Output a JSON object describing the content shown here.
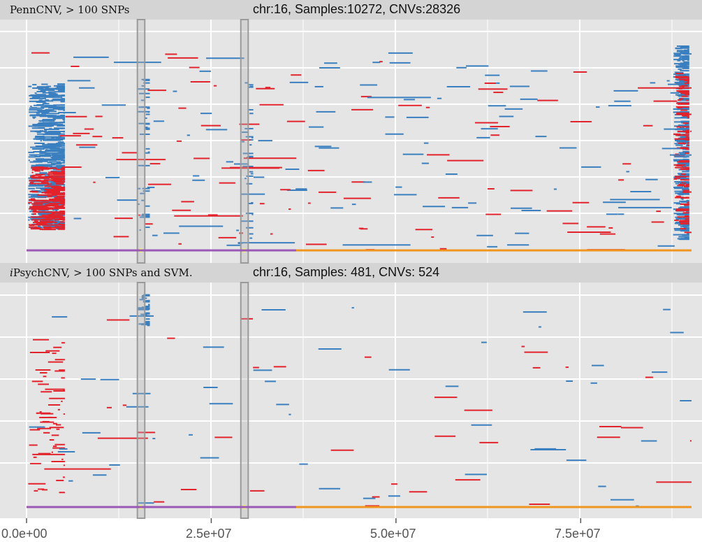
{
  "colors": {
    "panel_bg": "#e5e5e5",
    "header_bg": "#d4d4d4",
    "grid": "#ffffff",
    "duplication": "#e3232b",
    "deletion": "#3a7fbf",
    "segment_a": "#9b59b6",
    "segment_b": "#f0961e",
    "highlight_band": "#b5b5b5",
    "marker": "#f5f07a"
  },
  "panels": [
    {
      "label": "PennCNV, > 100 SNPs",
      "title": "chr:16, Samples:10272, CNVs:28326"
    },
    {
      "label_prefix": "i",
      "label_rest": "PsychCNV, > 100 SNPs and SVM.",
      "title": "chr:16, Samples: 481, CNVs: 524"
    }
  ],
  "chart_data": {
    "type": "scatter",
    "x_tick_labels": [
      "0.0e+00",
      "2.5e+07",
      "5.0e+07",
      "7.5e+07"
    ],
    "x_ticks": [
      0,
      25000000,
      50000000,
      75000000
    ],
    "xlim": [
      0,
      90000000
    ],
    "highlight_regions": [
      [
        15000000,
        16000000
      ],
      [
        29000000,
        30000000
      ]
    ],
    "axis_segments": [
      {
        "from": 0,
        "to": 36500000,
        "color_key": "segment_a"
      },
      {
        "from": 36500000,
        "to": 90000000,
        "color_key": "segment_b"
      }
    ],
    "clusters_panel1": [
      {
        "x": [
          200000,
          5000000
        ],
        "y": [
          0.1,
          0.8
        ],
        "type": "deletion",
        "density": 500
      },
      {
        "x": [
          200000,
          5000000
        ],
        "y": [
          0.1,
          0.4
        ],
        "type": "duplication",
        "density": 200
      },
      {
        "x": [
          15000000,
          16500000
        ],
        "y": [
          0.05,
          0.82
        ],
        "type": "deletion",
        "density": 40
      },
      {
        "x": [
          29000000,
          30500000
        ],
        "y": [
          0.05,
          0.82
        ],
        "type": "deletion",
        "density": 30
      },
      {
        "x": [
          87500000,
          89500000
        ],
        "y": [
          0.05,
          0.98
        ],
        "type": "deletion",
        "density": 350
      },
      {
        "x": [
          87500000,
          89500000
        ],
        "y": [
          0.1,
          0.85
        ],
        "type": "duplication",
        "density": 120
      }
    ],
    "clusters_panel2": [
      {
        "x": [
          15000000,
          16500000
        ],
        "y": [
          0.85,
          1.0
        ],
        "type": "deletion",
        "density": 40
      },
      {
        "x": [
          200000,
          5000000
        ],
        "y": [
          0.05,
          0.8
        ],
        "type": "duplication",
        "density": 60
      }
    ]
  }
}
